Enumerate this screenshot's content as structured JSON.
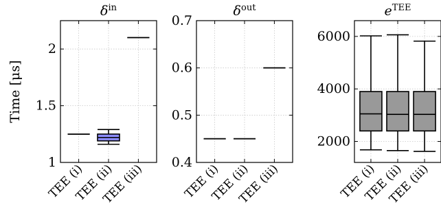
{
  "chart_data": [
    {
      "type": "box",
      "title_symbol": "δ",
      "title_sup": "in",
      "ylabel": "Time [μs]",
      "ylim": [
        1.0,
        2.25
      ],
      "yticks": [
        1,
        1.5,
        2
      ],
      "ytick_labels": [
        "1",
        "1.5",
        "2"
      ],
      "grid": true,
      "categories": [
        "TEE (i)",
        "TEE (ii)",
        "TEE (iii)"
      ],
      "boxes": [
        {
          "category": "TEE (i)",
          "min": 1.25,
          "q1": 1.25,
          "median": 1.25,
          "q3": 1.25,
          "max": 1.25
        },
        {
          "category": "TEE (ii)",
          "min": 1.16,
          "q1": 1.19,
          "median": 1.22,
          "q3": 1.25,
          "max": 1.29
        },
        {
          "category": "TEE (iii)",
          "min": 2.1,
          "q1": 2.1,
          "median": 2.1,
          "q3": 2.1,
          "max": 2.1
        }
      ],
      "box_colors": [
        "#ffffff",
        "#8c8cff",
        "#ffffff"
      ]
    },
    {
      "type": "box",
      "title_symbol": "δ",
      "title_sup": "out",
      "ylim": [
        0.4,
        0.7
      ],
      "yticks": [
        0.4,
        0.5,
        0.6,
        0.7
      ],
      "ytick_labels": [
        "0.4",
        "0.5",
        "0.6",
        "0.7"
      ],
      "grid": true,
      "categories": [
        "TEE (i)",
        "TEE (ii)",
        "TEE (iii)"
      ],
      "boxes": [
        {
          "category": "TEE (i)",
          "min": 0.45,
          "q1": 0.45,
          "median": 0.45,
          "q3": 0.45,
          "max": 0.45
        },
        {
          "category": "TEE (ii)",
          "min": 0.45,
          "q1": 0.45,
          "median": 0.45,
          "q3": 0.45,
          "max": 0.45
        },
        {
          "category": "TEE (iii)",
          "min": 0.6,
          "q1": 0.6,
          "median": 0.6,
          "q3": 0.6,
          "max": 0.6
        }
      ],
      "box_colors": [
        "#ffffff",
        "#ffffff",
        "#ffffff"
      ]
    },
    {
      "type": "box",
      "title_symbol": "e",
      "title_sup": "TEE",
      "ylim": [
        1200,
        6600
      ],
      "yticks": [
        2000,
        4000,
        6000
      ],
      "ytick_labels": [
        "2000",
        "4000",
        "6000"
      ],
      "grid": true,
      "categories": [
        "TEE (i)",
        "TEE (ii)",
        "TEE (iii)"
      ],
      "boxes": [
        {
          "category": "TEE (i)",
          "min": 1680,
          "q1": 2400,
          "median": 3050,
          "q3": 3900,
          "max": 6020
        },
        {
          "category": "TEE (ii)",
          "min": 1650,
          "q1": 2400,
          "median": 3030,
          "q3": 3900,
          "max": 6060
        },
        {
          "category": "TEE (iii)",
          "min": 1620,
          "q1": 2400,
          "median": 3030,
          "q3": 3900,
          "max": 5820
        }
      ],
      "box_colors": [
        "#999999",
        "#999999",
        "#999999"
      ]
    }
  ]
}
